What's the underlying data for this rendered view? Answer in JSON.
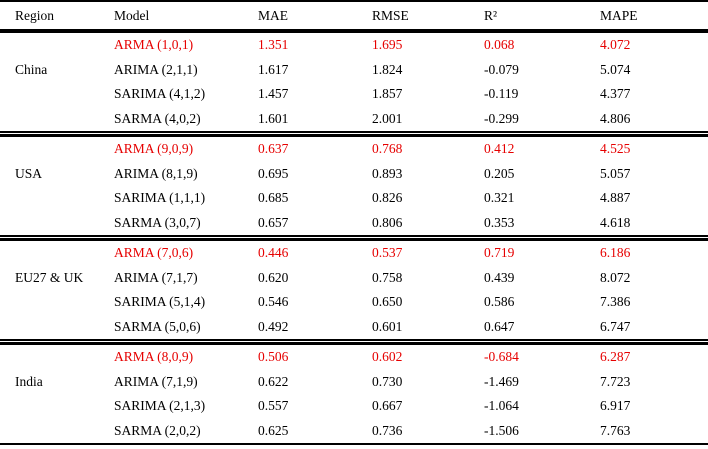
{
  "table": {
    "highlight_color": "#e60000",
    "text_color": "#000000",
    "columns": [
      "Region",
      "Model",
      "MAE",
      "RMSE",
      "R²",
      "MAPE"
    ],
    "sections": [
      {
        "region": "China",
        "rows": [
          {
            "model": "ARMA (1,0,1)",
            "mae": "1.351",
            "rmse": "1.695",
            "r2": "0.068",
            "mape": "4.072",
            "highlight": true
          },
          {
            "model": "ARIMA (2,1,1)",
            "mae": "1.617",
            "rmse": "1.824",
            "r2": "-0.079",
            "mape": "5.074",
            "highlight": false
          },
          {
            "model": "SARIMA (4,1,2)",
            "mae": "1.457",
            "rmse": "1.857",
            "r2": "-0.119",
            "mape": "4.377",
            "highlight": false
          },
          {
            "model": "SARMA (4,0,2)",
            "mae": "1.601",
            "rmse": "2.001",
            "r2": "-0.299",
            "mape": "4.806",
            "highlight": false
          }
        ]
      },
      {
        "region": "USA",
        "rows": [
          {
            "model": "ARMA (9,0,9)",
            "mae": "0.637",
            "rmse": "0.768",
            "r2": "0.412",
            "mape": "4.525",
            "highlight": true
          },
          {
            "model": "ARIMA (8,1,9)",
            "mae": "0.695",
            "rmse": "0.893",
            "r2": "0.205",
            "mape": "5.057",
            "highlight": false
          },
          {
            "model": "SARIMA (1,1,1)",
            "mae": "0.685",
            "rmse": "0.826",
            "r2": "0.321",
            "mape": "4.887",
            "highlight": false
          },
          {
            "model": "SARMA (3,0,7)",
            "mae": "0.657",
            "rmse": "0.806",
            "r2": "0.353",
            "mape": "4.618",
            "highlight": false
          }
        ]
      },
      {
        "region": "EU27 & UK",
        "rows": [
          {
            "model": "ARMA (7,0,6)",
            "mae": "0.446",
            "rmse": "0.537",
            "r2": "0.719",
            "mape": "6.186",
            "highlight": true
          },
          {
            "model": "ARIMA (7,1,7)",
            "mae": "0.620",
            "rmse": "0.758",
            "r2": "0.439",
            "mape": "8.072",
            "highlight": false
          },
          {
            "model": "SARIMA (5,1,4)",
            "mae": "0.546",
            "rmse": "0.650",
            "r2": "0.586",
            "mape": "7.386",
            "highlight": false
          },
          {
            "model": "SARMA (5,0,6)",
            "mae": "0.492",
            "rmse": "0.601",
            "r2": "0.647",
            "mape": "6.747",
            "highlight": false
          }
        ]
      },
      {
        "region": "India",
        "rows": [
          {
            "model": "ARMA (8,0,9)",
            "mae": "0.506",
            "rmse": "0.602",
            "r2": "-0.684",
            "mape": "6.287",
            "highlight": true
          },
          {
            "model": "ARIMA (7,1,9)",
            "mae": "0.622",
            "rmse": "0.730",
            "r2": "-1.469",
            "mape": "7.723",
            "highlight": false
          },
          {
            "model": "SARIMA (2,1,3)",
            "mae": "0.557",
            "rmse": "0.667",
            "r2": "-1.064",
            "mape": "6.917",
            "highlight": false
          },
          {
            "model": "SARMA (2,0,2)",
            "mae": "0.625",
            "rmse": "0.736",
            "r2": "-1.506",
            "mape": "7.763",
            "highlight": false
          }
        ]
      }
    ]
  }
}
